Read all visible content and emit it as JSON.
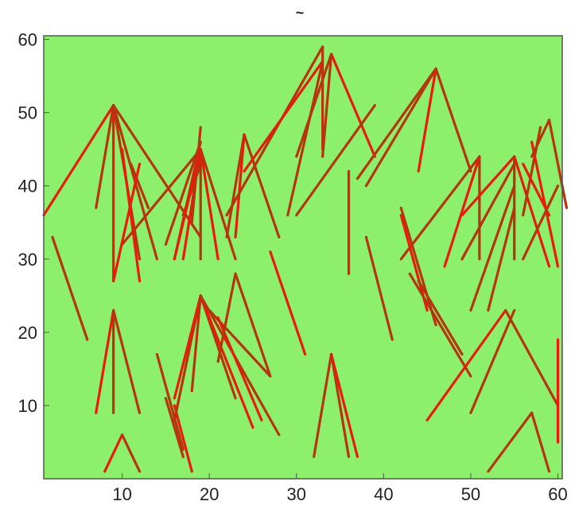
{
  "chart_data": {
    "type": "line",
    "title": "~",
    "xlabel": "",
    "ylabel": "",
    "xlim": [
      1,
      60.5
    ],
    "ylim": [
      0,
      60.5
    ],
    "x_ticks": [
      10,
      20,
      30,
      40,
      50,
      60
    ],
    "y_ticks": [
      10,
      20,
      30,
      40,
      50,
      60
    ],
    "x_tick_labels": [
      "10",
      "20",
      "30",
      "40",
      "50",
      "60"
    ],
    "y_tick_labels": [
      "10",
      "20",
      "30",
      "40",
      "50",
      "60"
    ],
    "grid": false,
    "legend": "none",
    "colors": {
      "plot_background": "#8cf06c",
      "segment": "#b5350c",
      "segment_highlight": "#e81b0d",
      "axes": "#555555"
    },
    "segments": [
      [
        1,
        36,
        9,
        51
      ],
      [
        9,
        51,
        19,
        33
      ],
      [
        9,
        51,
        7,
        37
      ],
      [
        9,
        51,
        9,
        27
      ],
      [
        9,
        51,
        12,
        30
      ],
      [
        9,
        51,
        14,
        30
      ],
      [
        10,
        45,
        12,
        27
      ],
      [
        10,
        32,
        19,
        45
      ],
      [
        11,
        43,
        13,
        37
      ],
      [
        9,
        27,
        12,
        43
      ],
      [
        15,
        32,
        19,
        46
      ],
      [
        16,
        30,
        19,
        46
      ],
      [
        17,
        30,
        19,
        45
      ],
      [
        18,
        35,
        19,
        48
      ],
      [
        19,
        45,
        19,
        30
      ],
      [
        19,
        45,
        21,
        30
      ],
      [
        19,
        45,
        23,
        30
      ],
      [
        17,
        36,
        19,
        43
      ],
      [
        19,
        45,
        16,
        30
      ],
      [
        22,
        33,
        24,
        47
      ],
      [
        24,
        47,
        28,
        33
      ],
      [
        24,
        47,
        23,
        33
      ],
      [
        29,
        36,
        33,
        57
      ],
      [
        22,
        36,
        33,
        59
      ],
      [
        24,
        42,
        33,
        57
      ],
      [
        30,
        44,
        34,
        58
      ],
      [
        33,
        59,
        33,
        45
      ],
      [
        34,
        58,
        39,
        44
      ],
      [
        33,
        44,
        34,
        58
      ],
      [
        30,
        36,
        39,
        51
      ],
      [
        36,
        42,
        36,
        28
      ],
      [
        37,
        41,
        46,
        56
      ],
      [
        38,
        40,
        46,
        56
      ],
      [
        46,
        56,
        44,
        42
      ],
      [
        46,
        56,
        50,
        42
      ],
      [
        42,
        30,
        51,
        44
      ],
      [
        47,
        29,
        51,
        44
      ],
      [
        51,
        44,
        51,
        30
      ],
      [
        49,
        30,
        55,
        43
      ],
      [
        49,
        36,
        55,
        44
      ],
      [
        50,
        23,
        55,
        40
      ],
      [
        52,
        23,
        55,
        37
      ],
      [
        55,
        44,
        59,
        29
      ],
      [
        55,
        44,
        55,
        30
      ],
      [
        56,
        36,
        58,
        48
      ],
      [
        57,
        46,
        60,
        29
      ],
      [
        57,
        44,
        59,
        49
      ],
      [
        59,
        49,
        61,
        37
      ],
      [
        56,
        43,
        59,
        36
      ],
      [
        56,
        30,
        60,
        40
      ],
      [
        2,
        33,
        6,
        19
      ],
      [
        7,
        9,
        9,
        23
      ],
      [
        9,
        23,
        9,
        9
      ],
      [
        9,
        23,
        12,
        9
      ],
      [
        8,
        1,
        10,
        6
      ],
      [
        10,
        6,
        12,
        1
      ],
      [
        14,
        17,
        17,
        4
      ],
      [
        16,
        10,
        18,
        1
      ],
      [
        15,
        11,
        17,
        3
      ],
      [
        16,
        8,
        19,
        25
      ],
      [
        16,
        11,
        19,
        25
      ],
      [
        18,
        12,
        19,
        25
      ],
      [
        19,
        25,
        23,
        11
      ],
      [
        19,
        25,
        25,
        7
      ],
      [
        19,
        25,
        28,
        6
      ],
      [
        20,
        23,
        27,
        14
      ],
      [
        21,
        22,
        26,
        8
      ],
      [
        21,
        16,
        23,
        28
      ],
      [
        23,
        28,
        27,
        14
      ],
      [
        27,
        31,
        31,
        17
      ],
      [
        32,
        3,
        34,
        17
      ],
      [
        34,
        17,
        36,
        3
      ],
      [
        34,
        17,
        37,
        3
      ],
      [
        38,
        33,
        41,
        19
      ],
      [
        42,
        37,
        46,
        21
      ],
      [
        42,
        36,
        45,
        23
      ],
      [
        43,
        28,
        50,
        14
      ],
      [
        44,
        27,
        49,
        17
      ],
      [
        45,
        8,
        54,
        23
      ],
      [
        50,
        9,
        55,
        23
      ],
      [
        54,
        23,
        60,
        10
      ],
      [
        60,
        19,
        60,
        5
      ],
      [
        52,
        1,
        57,
        9
      ],
      [
        57,
        9,
        59,
        1
      ]
    ]
  }
}
